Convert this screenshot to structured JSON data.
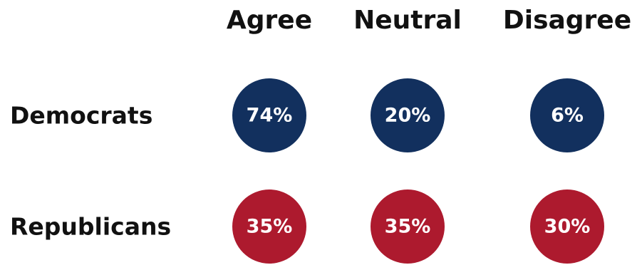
{
  "chart_data": {
    "type": "table",
    "categories": [
      "Agree",
      "Neutral",
      "Disagree"
    ],
    "series": [
      {
        "name": "Democrats",
        "color": "#12305e",
        "values": [
          74,
          20,
          6
        ],
        "labels": [
          "74%",
          "20%",
          "6%"
        ]
      },
      {
        "name": "Republicans",
        "color": "#ad1a2e",
        "values": [
          35,
          35,
          30
        ],
        "labels": [
          "35%",
          "35%",
          "30%"
        ]
      }
    ]
  }
}
